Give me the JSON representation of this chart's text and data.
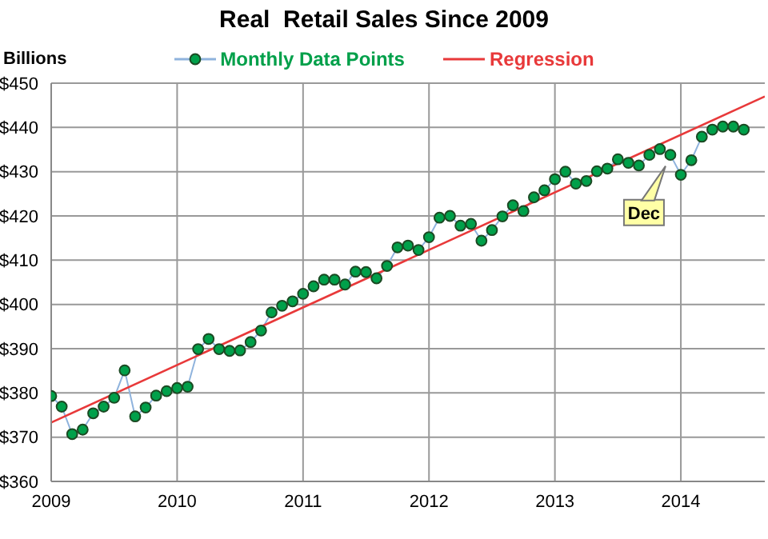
{
  "chart_data": {
    "type": "line",
    "title": "Real  Retail Sales Since 2009",
    "ylabel": "Billions",
    "x": [
      "2009-01",
      "2009-02",
      "2009-03",
      "2009-04",
      "2009-05",
      "2009-06",
      "2009-07",
      "2009-08",
      "2009-09",
      "2009-10",
      "2009-11",
      "2009-12",
      "2010-01",
      "2010-02",
      "2010-03",
      "2010-04",
      "2010-05",
      "2010-06",
      "2010-07",
      "2010-08",
      "2010-09",
      "2010-10",
      "2010-11",
      "2010-12",
      "2011-01",
      "2011-02",
      "2011-03",
      "2011-04",
      "2011-05",
      "2011-06",
      "2011-07",
      "2011-08",
      "2011-09",
      "2011-10",
      "2011-11",
      "2011-12",
      "2012-01",
      "2012-02",
      "2012-03",
      "2012-04",
      "2012-05",
      "2012-06",
      "2012-07",
      "2012-08",
      "2012-09",
      "2012-10",
      "2012-11",
      "2012-12",
      "2013-01",
      "2013-02",
      "2013-03",
      "2013-04",
      "2013-05",
      "2013-06",
      "2013-07",
      "2013-08",
      "2013-09",
      "2013-10",
      "2013-11",
      "2013-12",
      "2014-01",
      "2014-02",
      "2014-03",
      "2014-04",
      "2014-05",
      "2014-06",
      "2014-07"
    ],
    "series": [
      {
        "name": "Monthly Data Points",
        "color": "#00a04a",
        "marker": "circle",
        "values": [
          379.3,
          376.9,
          370.7,
          371.7,
          375.4,
          376.9,
          378.9,
          385.1,
          374.7,
          376.7,
          379.4,
          380.4,
          381.1,
          381.4,
          389.9,
          392.2,
          389.9,
          389.5,
          389.6,
          391.5,
          394.1,
          398.2,
          399.7,
          400.7,
          402.4,
          404.1,
          405.6,
          405.6,
          404.5,
          407.4,
          407.3,
          405.9,
          408.7,
          412.9,
          413.3,
          412.3,
          415.2,
          419.6,
          420,
          417.8,
          418.2,
          414.4,
          416.8,
          419.9,
          422.4,
          421.1,
          424.2,
          425.8,
          428.3,
          430,
          427.3,
          427.9,
          430.1,
          430.7,
          432.8,
          432,
          431.4,
          433.8,
          435.1,
          433.8,
          429.3,
          432.6,
          437.9,
          439.5,
          440.2,
          440.2,
          439.5
        ]
      },
      {
        "name": "Regression",
        "color": "#e8393a",
        "marker": "none",
        "x": [
          "2009-01",
          "2014-09"
        ],
        "values": [
          373.3,
          447
        ]
      }
    ],
    "xlim": [
      "2009-01",
      "2014-09"
    ],
    "xticks": [
      "2009",
      "2010",
      "2011",
      "2012",
      "2013",
      "2014"
    ],
    "ylim": [
      360,
      450
    ],
    "yticks": [
      {
        "value": 360,
        "label": "$360"
      },
      {
        "value": 370,
        "label": "$370"
      },
      {
        "value": 380,
        "label": "$380"
      },
      {
        "value": 390,
        "label": "$390"
      },
      {
        "value": 400,
        "label": "$400"
      },
      {
        "value": 410,
        "label": "$410"
      },
      {
        "value": 420,
        "label": "$420"
      },
      {
        "value": 430,
        "label": "$430"
      },
      {
        "value": 440,
        "label": "$440"
      },
      {
        "value": 450,
        "label": "$450"
      }
    ],
    "annotations": [
      {
        "text": "Dec",
        "x": "2013-12",
        "y": 433.8
      }
    ],
    "grid": true,
    "legend": "top",
    "line_style": "solid"
  }
}
